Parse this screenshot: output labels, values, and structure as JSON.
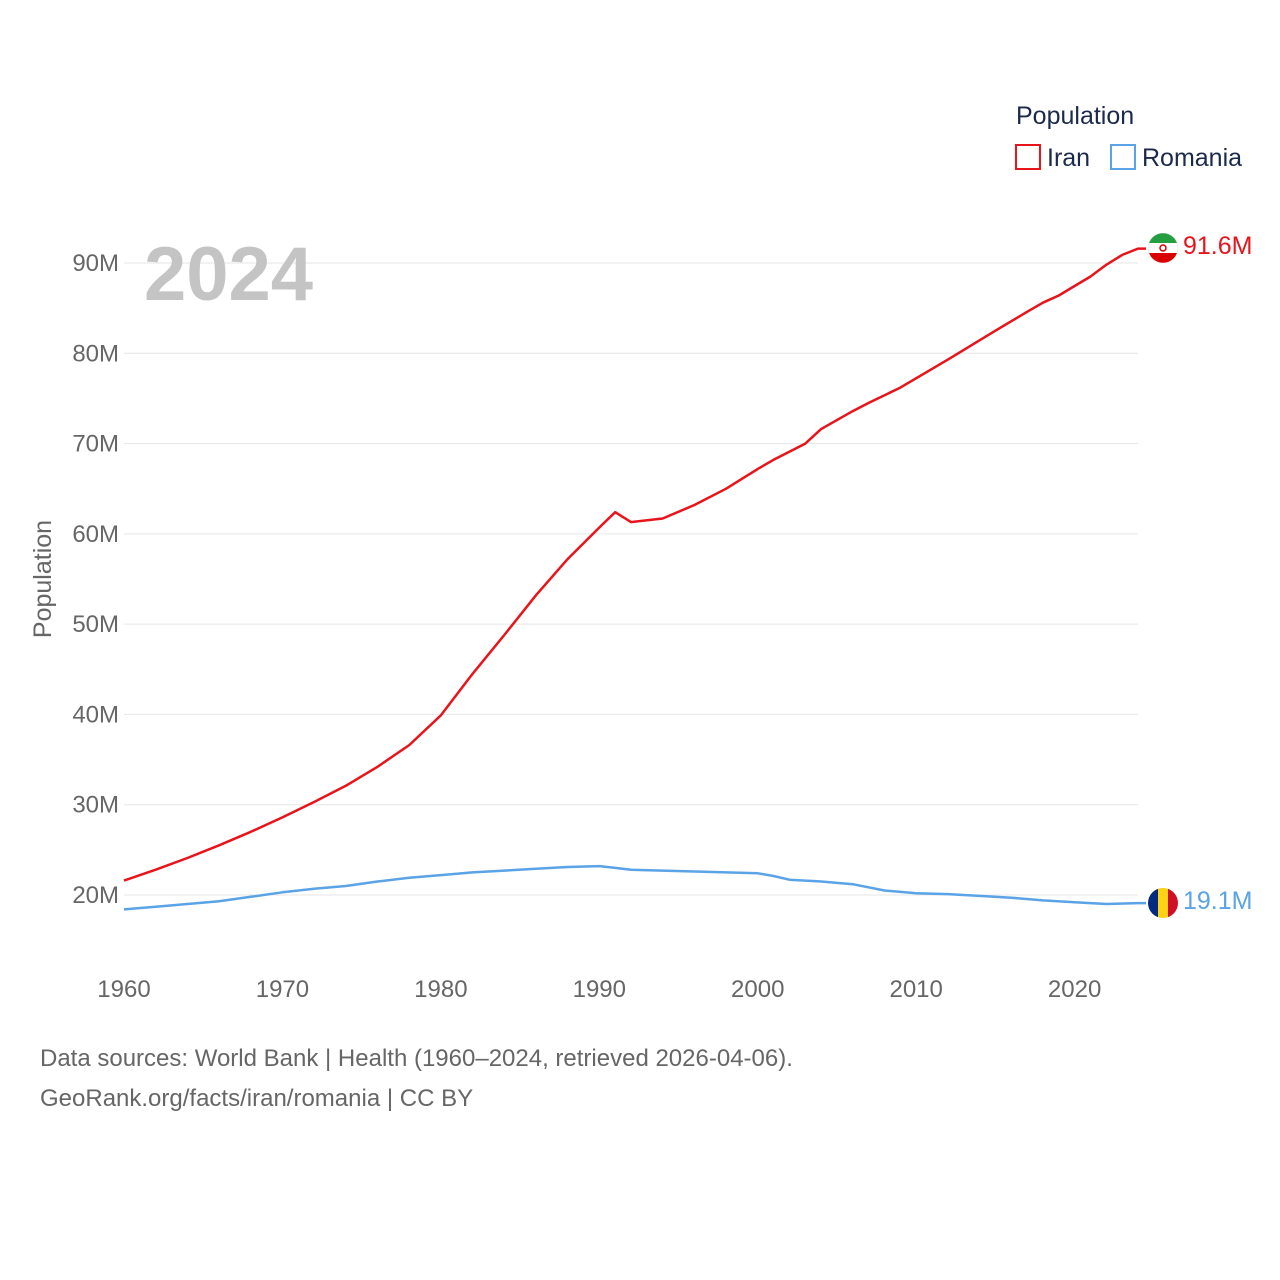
{
  "chart_data": {
    "type": "line",
    "year_watermark": "2024",
    "ylabel": "Population",
    "ylim": [
      15000000,
      95000000
    ],
    "xlim": [
      1960,
      2024
    ],
    "y_ticks": [
      {
        "value": 20000000,
        "label": "20M"
      },
      {
        "value": 30000000,
        "label": "30M"
      },
      {
        "value": 40000000,
        "label": "40M"
      },
      {
        "value": 50000000,
        "label": "50M"
      },
      {
        "value": 60000000,
        "label": "60M"
      },
      {
        "value": 70000000,
        "label": "70M"
      },
      {
        "value": 80000000,
        "label": "80M"
      },
      {
        "value": 90000000,
        "label": "90M"
      }
    ],
    "x_ticks": [
      {
        "value": 1960,
        "label": "1960"
      },
      {
        "value": 1970,
        "label": "1970"
      },
      {
        "value": 1980,
        "label": "1980"
      },
      {
        "value": 1990,
        "label": "1990"
      },
      {
        "value": 2000,
        "label": "2000"
      },
      {
        "value": 2010,
        "label": "2010"
      },
      {
        "value": 2020,
        "label": "2020"
      }
    ],
    "legend": {
      "title": "Population",
      "position": "top-right"
    },
    "series": [
      {
        "name": "Iran",
        "color": "#e8141b",
        "end_label": "91.6M",
        "flag_icon": "iran-flag-icon",
        "x": [
          1960,
          1962,
          1964,
          1966,
          1968,
          1970,
          1972,
          1974,
          1976,
          1978,
          1980,
          1982,
          1984,
          1986,
          1988,
          1990,
          1991,
          1992,
          1994,
          1996,
          1998,
          2000,
          2001,
          2003,
          2004,
          2006,
          2007,
          2009,
          2012,
          2015,
          2017,
          2018,
          2019,
          2021,
          2022,
          2023,
          2024
        ],
        "values": [
          21600000,
          22800000,
          24100000,
          25500000,
          27000000,
          28600000,
          30300000,
          32100000,
          34200000,
          36600000,
          39900000,
          44500000,
          48800000,
          53200000,
          57200000,
          60700000,
          62400000,
          61300000,
          61700000,
          63200000,
          65000000,
          67200000,
          68200000,
          70000000,
          71600000,
          73600000,
          74500000,
          76200000,
          79300000,
          82500000,
          84600000,
          85600000,
          86400000,
          88500000,
          89800000,
          90900000,
          91600000
        ]
      },
      {
        "name": "Romania",
        "color": "#5aa3e6",
        "end_label": "19.1M",
        "flag_icon": "romania-flag-icon",
        "x": [
          1960,
          1962,
          1964,
          1966,
          1968,
          1970,
          1972,
          1974,
          1976,
          1978,
          1980,
          1982,
          1984,
          1986,
          1988,
          1990,
          1991,
          1992,
          1994,
          1996,
          1998,
          2000,
          2001,
          2002,
          2004,
          2006,
          2008,
          2010,
          2012,
          2014,
          2016,
          2018,
          2020,
          2021,
          2022,
          2024
        ],
        "values": [
          18400000,
          18700000,
          19000000,
          19300000,
          19800000,
          20300000,
          20700000,
          21000000,
          21500000,
          21900000,
          22200000,
          22500000,
          22700000,
          22900000,
          23100000,
          23200000,
          23000000,
          22800000,
          22700000,
          22600000,
          22500000,
          22400000,
          22100000,
          21700000,
          21500000,
          21200000,
          20500000,
          20200000,
          20100000,
          19900000,
          19700000,
          19400000,
          19200000,
          19100000,
          19000000,
          19100000
        ]
      }
    ]
  },
  "footer": {
    "line1": "Data sources: World Bank | Health (1960–2024, retrieved 2026-04-06).",
    "line2": "GeoRank.org/facts/iran/romania | CC BY"
  }
}
